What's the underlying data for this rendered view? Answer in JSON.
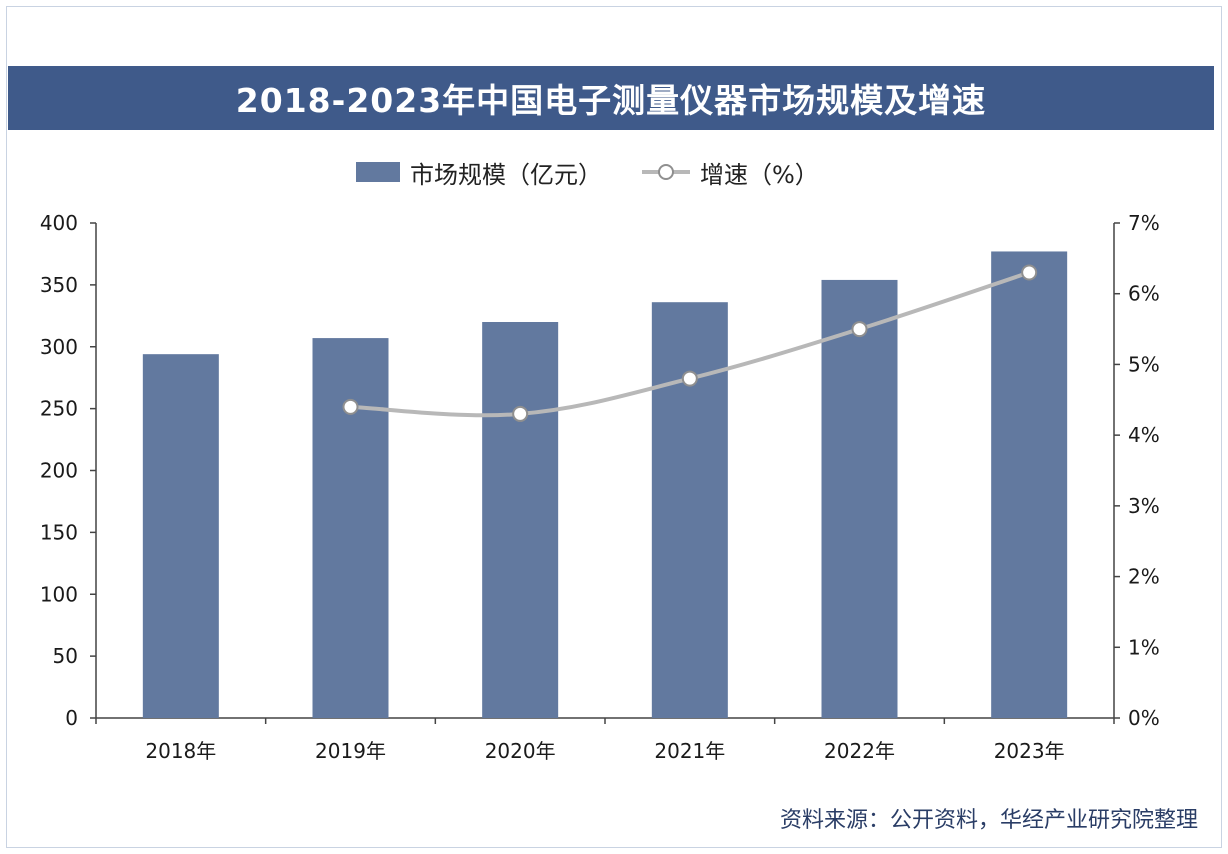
{
  "chart_data": {
    "type": "bar",
    "title": "2018-2023年中国电子测量仪器市场规模及增速",
    "categories": [
      "2018年",
      "2019年",
      "2020年",
      "2021年",
      "2022年",
      "2023年"
    ],
    "series": [
      {
        "name": "市场规模（亿元）",
        "type": "bar",
        "axis": "left",
        "values": [
          294,
          307,
          320,
          336,
          354,
          377
        ]
      },
      {
        "name": "增速（%）",
        "type": "line",
        "axis": "right",
        "values": [
          null,
          4.4,
          4.3,
          4.8,
          5.5,
          6.3
        ]
      }
    ],
    "ylim_left": [
      0,
      400
    ],
    "yticks_left": [
      "0",
      "50",
      "100",
      "150",
      "200",
      "250",
      "300",
      "350",
      "400"
    ],
    "ylim_right": [
      0,
      7
    ],
    "yticks_right": [
      "0%",
      "1%",
      "2%",
      "3%",
      "4%",
      "5%",
      "6%",
      "7%"
    ],
    "grid": false,
    "legend": "top"
  },
  "colors": {
    "title_bg": "#3f5a8a",
    "bar": "#62799f",
    "line": "#b8b8b8",
    "marker_edge": "#8f8f8f",
    "source_text": "#2a3d66"
  },
  "source": "资料来源：公开资料，华经产业研究院整理"
}
